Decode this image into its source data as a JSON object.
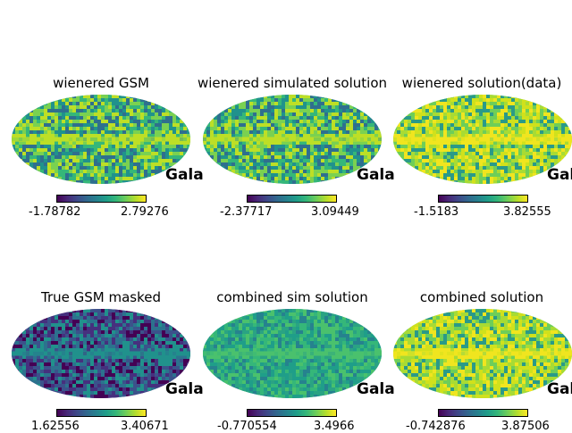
{
  "chart_data": [
    {
      "type": "heatmap",
      "projection": "mollweide",
      "title": "wienered GSM",
      "graticule_label": "Gala",
      "colormap": "viridis",
      "colorbar": {
        "min": "-1.78782",
        "max": "2.79276"
      },
      "palette": [
        "#2f6f8e",
        "#20928c",
        "#35b779",
        "#7ad151",
        "#bddf26"
      ]
    },
    {
      "type": "heatmap",
      "projection": "mollweide",
      "title": "wienered simulated solution",
      "graticule_label": "Gala",
      "colormap": "viridis",
      "colorbar": {
        "min": "-2.37717",
        "max": "3.09449"
      },
      "palette": [
        "#2f6f8e",
        "#20928c",
        "#35b779",
        "#7ad151",
        "#bddf26"
      ]
    },
    {
      "type": "heatmap",
      "projection": "mollweide",
      "title": "wienered solution(data)",
      "graticule_label": "Gala",
      "colormap": "viridis",
      "colorbar": {
        "min": "-1.5183",
        "max": "3.82555"
      },
      "palette": [
        "#2a9a88",
        "#6ece58",
        "#a8db34",
        "#d0e11c",
        "#f0e51f"
      ]
    },
    {
      "type": "heatmap",
      "projection": "mollweide",
      "title": "True GSM masked",
      "graticule_label": "Gala",
      "colormap": "viridis",
      "colorbar": {
        "min": "1.62556",
        "max": "3.40671"
      },
      "palette": [
        "#440154",
        "#46307e",
        "#3b528b",
        "#2c728e",
        "#21918c"
      ]
    },
    {
      "type": "heatmap",
      "projection": "mollweide",
      "title": "combined sim solution",
      "graticule_label": "Gala",
      "colormap": "viridis",
      "colorbar": {
        "min": "-0.770554",
        "max": "3.4966"
      },
      "palette": [
        "#26828e",
        "#1f9e89",
        "#2aa383",
        "#35b779",
        "#4ac16d"
      ]
    },
    {
      "type": "heatmap",
      "projection": "mollweide",
      "title": "combined solution",
      "graticule_label": "Gala",
      "colormap": "viridis",
      "colorbar": {
        "min": "-0.742876",
        "max": "3.87506"
      },
      "palette": [
        "#2a9a88",
        "#6ece58",
        "#a8db34",
        "#d0e11c",
        "#f0e51f"
      ]
    }
  ]
}
